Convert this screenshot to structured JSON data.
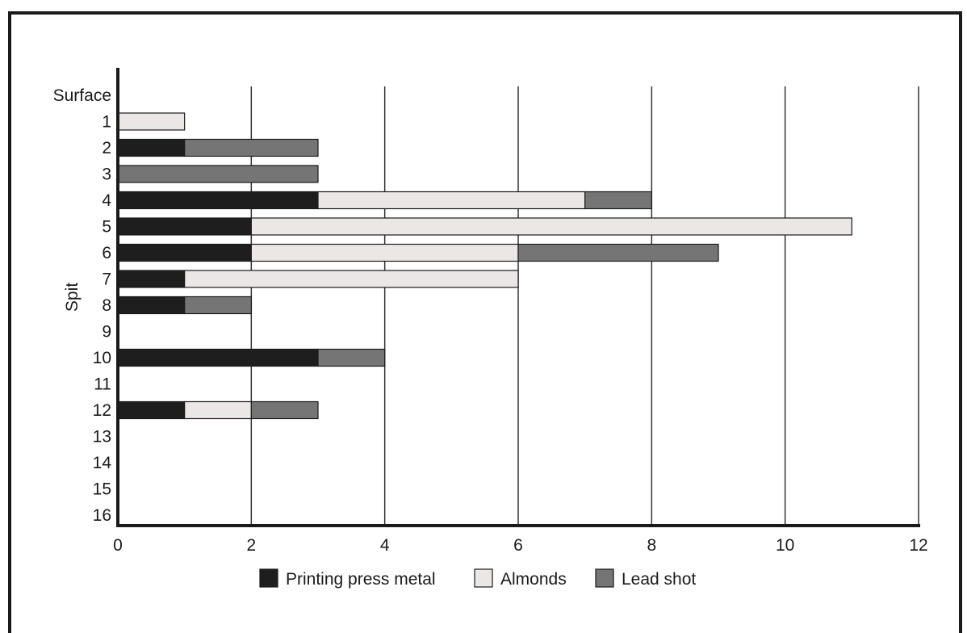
{
  "chart_data": {
    "type": "bar",
    "orientation": "horizontal",
    "stacked": true,
    "ylabel": "Spit",
    "xlabel": "",
    "xlim": [
      0,
      12
    ],
    "x_ticks": [
      0,
      2,
      4,
      6,
      8,
      10,
      12
    ],
    "grid": "vertical",
    "legend_position": "bottom",
    "categories": [
      "Surface",
      "1",
      "2",
      "3",
      "4",
      "5",
      "6",
      "7",
      "8",
      "9",
      "10",
      "11",
      "12",
      "13",
      "14",
      "15",
      "16"
    ],
    "series": [
      {
        "name": "Printing press metal",
        "color": "#1e1e1e",
        "values": [
          0,
          0,
          1,
          0,
          3,
          2,
          2,
          1,
          1,
          0,
          3,
          0,
          1,
          0,
          0,
          0,
          0
        ]
      },
      {
        "name": "Almonds",
        "color": "#ece7e7",
        "values": [
          0,
          1,
          0,
          0,
          4,
          9,
          4,
          5,
          0,
          0,
          0,
          0,
          1,
          0,
          0,
          0,
          0
        ]
      },
      {
        "name": "Lead shot",
        "color": "#757575",
        "values": [
          0,
          0,
          2,
          3,
          1,
          0,
          3,
          0,
          1,
          0,
          1,
          0,
          1,
          0,
          0,
          0,
          0
        ]
      }
    ]
  }
}
